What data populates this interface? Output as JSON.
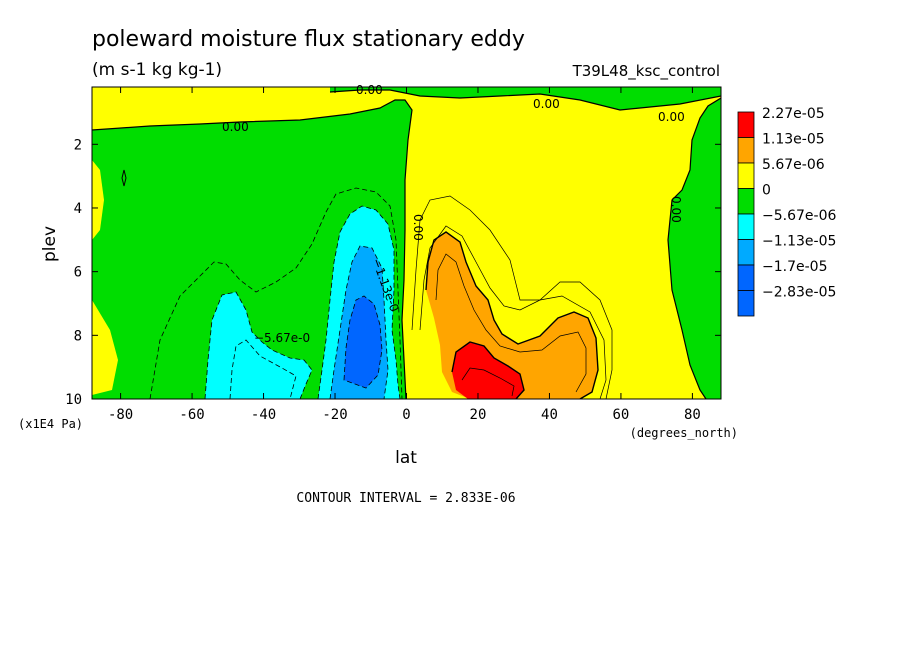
{
  "chart_data": {
    "type": "heatmap",
    "title": "poleward moisture flux stationary eddy",
    "units": "(m s-1 kg kg-1)",
    "run_label": "T39L48_ksc_control",
    "xlabel": "lat",
    "xunits": "(degrees_north)",
    "ylabel": "plev",
    "yunits": "(x1E4 Pa)",
    "xlim": [
      -88,
      88
    ],
    "ylim": [
      10,
      0.2
    ],
    "x_ticks": [
      "-80",
      "-60",
      "-40",
      "-20",
      "0",
      "20",
      "40",
      "60",
      "80"
    ],
    "y_ticks": [
      "2",
      "4",
      "6",
      "8",
      "10"
    ],
    "footer": "CONTOUR INTERVAL = 2.833E-06",
    "contour_interval": 2.833e-06,
    "legend": [
      {
        "label": "2.27e-05",
        "color": "#ff0000"
      },
      {
        "label": "1.13e-05",
        "color": "#ffa500"
      },
      {
        "label": "5.67e-06",
        "color": "#ffff00"
      },
      {
        "label": "0",
        "color": "#00dd00"
      },
      {
        "label": "−5.67e-06",
        "color": "#00ffff"
      },
      {
        "label": "−1.13e-05",
        "color": "#00aaff"
      },
      {
        "label": "−1.7e-05",
        "color": "#0066ff"
      },
      {
        "label": "−2.83e-05",
        "color": "#0066ff"
      }
    ],
    "contour_labels": [
      "0.00",
      "0.00",
      "0.00",
      "0.00",
      "0.00",
      "0.00",
      "−5.67e-0",
      "−1.13e-0"
    ],
    "features": [
      {
        "name": "southern negative core",
        "lat": -13,
        "plev": 8.2,
        "value": -2e-05
      },
      {
        "name": "southern tropical negative lobe",
        "lat": -50,
        "plev": 9.0,
        "value": -7e-06
      },
      {
        "name": "northern positive core",
        "lat": 22,
        "plev": 9.2,
        "value": 2.4e-05
      },
      {
        "name": "northern positive lobe",
        "lat": 45,
        "plev": 8.2,
        "value": 1.3e-05
      }
    ]
  }
}
